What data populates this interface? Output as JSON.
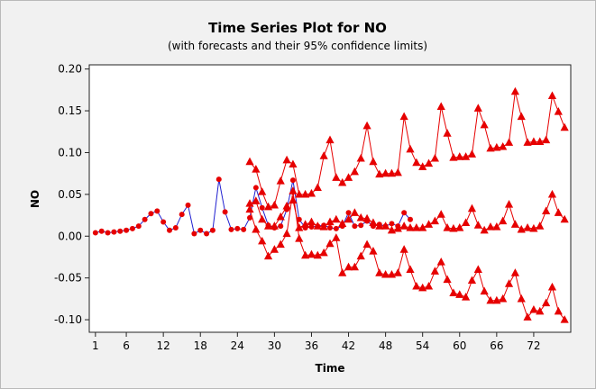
{
  "chart_data": {
    "type": "line",
    "title": "Time Series Plot for NO",
    "subtitle": "(with forecasts and their 95% confidence limits)",
    "xlabel": "Time",
    "ylabel": "NO",
    "xlim": [
      0,
      78
    ],
    "ylim": [
      -0.115,
      0.205
    ],
    "x_ticks": [
      1,
      6,
      12,
      18,
      24,
      30,
      36,
      42,
      48,
      54,
      60,
      66,
      72
    ],
    "y_ticks": [
      0.2,
      0.15,
      0.1,
      0.05,
      0.0,
      -0.05,
      -0.1
    ],
    "y_tick_labels": [
      "0.20",
      "0.15",
      "0.10",
      "0.05",
      "0.00",
      "-0.05",
      "-0.10"
    ],
    "grid": false,
    "legend": "none",
    "colors": {
      "observed_line": "#1f1fd0",
      "observed_marker": "#e60000",
      "forecast": "#e60000",
      "background": "#f1f1f1",
      "plot_area": "#ffffff"
    },
    "series": [
      {
        "role": "observed",
        "x": [
          1,
          2,
          3,
          4,
          5,
          6,
          7,
          8,
          9,
          10,
          11,
          12,
          13,
          14,
          15,
          16,
          17,
          18,
          19,
          20,
          21,
          22,
          23,
          24,
          25,
          26,
          27,
          28,
          29,
          30,
          31,
          32,
          33,
          34,
          35,
          36,
          37,
          38,
          39,
          40,
          41,
          42,
          43,
          44,
          45,
          46,
          47,
          48,
          49,
          50,
          51,
          52
        ],
        "values": [
          0.004,
          0.006,
          0.004,
          0.005,
          0.006,
          0.007,
          0.009,
          0.012,
          0.02,
          0.027,
          0.03,
          0.017,
          0.007,
          0.01,
          0.026,
          0.037,
          0.003,
          0.007,
          0.003,
          0.007,
          0.068,
          0.029,
          0.008,
          0.009,
          0.008,
          0.022,
          0.058,
          0.034,
          0.013,
          0.01,
          0.012,
          0.032,
          0.067,
          0.02,
          0.01,
          0.011,
          0.012,
          0.013,
          0.01,
          0.009,
          0.012,
          0.028,
          0.012,
          0.013,
          0.018,
          0.012,
          0.014,
          0.012,
          0.015,
          0.012,
          0.028,
          0.02
        ]
      },
      {
        "role": "forecast",
        "x": [
          26,
          27,
          28,
          29,
          30,
          31,
          32,
          33,
          34,
          35,
          36,
          37,
          38,
          39,
          40,
          41,
          42,
          43,
          44,
          45,
          46,
          47,
          48,
          49,
          50,
          51,
          52,
          53,
          54,
          55,
          56,
          57,
          58,
          59,
          60,
          61,
          62,
          63,
          64,
          65,
          66,
          67,
          68,
          69,
          70,
          71,
          72,
          73,
          74,
          75,
          76,
          77
        ],
        "values": [
          0.039,
          0.042,
          0.02,
          0.012,
          0.012,
          0.023,
          0.036,
          0.043,
          0.01,
          0.014,
          0.017,
          0.012,
          0.011,
          0.017,
          0.02,
          0.015,
          0.02,
          0.028,
          0.022,
          0.021,
          0.016,
          0.012,
          0.012,
          0.007,
          0.009,
          0.012,
          0.01,
          0.01,
          0.01,
          0.014,
          0.018,
          0.026,
          0.01,
          0.009,
          0.01,
          0.016,
          0.033,
          0.013,
          0.007,
          0.011,
          0.011,
          0.018,
          0.038,
          0.014,
          0.008,
          0.01,
          0.009,
          0.012,
          0.03,
          0.05,
          0.028,
          0.02
        ]
      },
      {
        "role": "upper 95% limit",
        "x": [
          26,
          27,
          28,
          29,
          30,
          31,
          32,
          33,
          34,
          35,
          36,
          37,
          38,
          39,
          40,
          41,
          42,
          43,
          44,
          45,
          46,
          47,
          48,
          49,
          50,
          51,
          52,
          53,
          54,
          55,
          56,
          57,
          58,
          59,
          60,
          61,
          62,
          63,
          64,
          65,
          66,
          67,
          68,
          69,
          70,
          71,
          72,
          73,
          74,
          75,
          76,
          77
        ],
        "values": [
          0.089,
          0.08,
          0.053,
          0.035,
          0.037,
          0.066,
          0.091,
          0.086,
          0.05,
          0.05,
          0.051,
          0.058,
          0.096,
          0.115,
          0.07,
          0.064,
          0.07,
          0.077,
          0.093,
          0.132,
          0.089,
          0.074,
          0.075,
          0.075,
          0.076,
          0.143,
          0.104,
          0.088,
          0.083,
          0.087,
          0.093,
          0.155,
          0.123,
          0.094,
          0.095,
          0.095,
          0.098,
          0.153,
          0.133,
          0.105,
          0.106,
          0.107,
          0.112,
          0.173,
          0.143,
          0.112,
          0.113,
          0.113,
          0.115,
          0.168,
          0.149,
          0.13
        ]
      },
      {
        "role": "lower 95% limit",
        "x": [
          26,
          27,
          28,
          29,
          30,
          31,
          32,
          33,
          34,
          35,
          36,
          37,
          38,
          39,
          40,
          41,
          42,
          43,
          44,
          45,
          46,
          47,
          48,
          49,
          50,
          51,
          52,
          53,
          54,
          55,
          56,
          57,
          58,
          59,
          60,
          61,
          62,
          63,
          64,
          65,
          66,
          67,
          68,
          69,
          70,
          71,
          72,
          73,
          74,
          75,
          76,
          77
        ],
        "values": [
          0.032,
          0.008,
          -0.006,
          -0.024,
          -0.016,
          -0.01,
          0.003,
          0.054,
          -0.003,
          -0.023,
          -0.022,
          -0.023,
          -0.02,
          -0.009,
          -0.002,
          -0.044,
          -0.037,
          -0.037,
          -0.024,
          -0.01,
          -0.018,
          -0.044,
          -0.046,
          -0.046,
          -0.044,
          -0.016,
          -0.04,
          -0.06,
          -0.062,
          -0.06,
          -0.042,
          -0.031,
          -0.052,
          -0.068,
          -0.07,
          -0.073,
          -0.053,
          -0.04,
          -0.066,
          -0.077,
          -0.077,
          -0.075,
          -0.057,
          -0.044,
          -0.075,
          -0.097,
          -0.088,
          -0.09,
          -0.08,
          -0.061,
          -0.09,
          -0.1
        ]
      }
    ]
  }
}
